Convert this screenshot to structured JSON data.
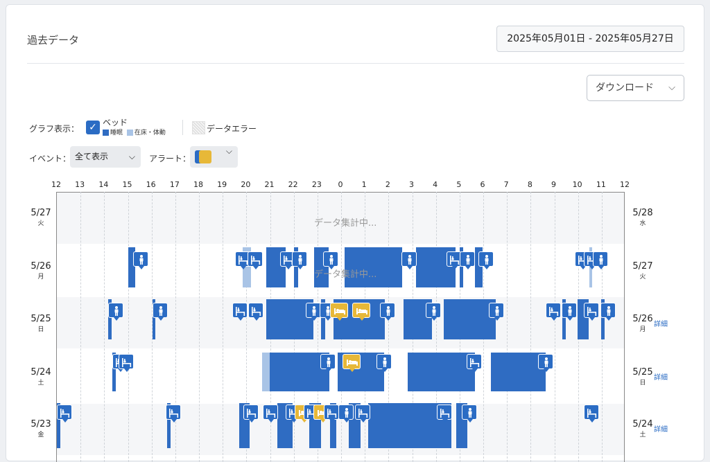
{
  "header": {
    "title": "過去データ",
    "date_range": "2025年05月01日 - 2025年05月27日",
    "download_label": "ダウンロード"
  },
  "legend": {
    "graph_label": "グラフ表示：",
    "bed_label": "ベッド",
    "sleep_label": "睡眠",
    "inbed_label": "在床・体動",
    "error_label": "データエラー"
  },
  "filters": {
    "event_label": "イベント：",
    "event_value": "全て表示",
    "alert_label": "アラート："
  },
  "colors": {
    "sleep": "#2f6cc2",
    "inbed": "#a9c4e6",
    "alert": "#e7b838",
    "icon": "#2b6cc4"
  },
  "axis_ticks": [
    "12",
    "13",
    "14",
    "15",
    "16",
    "17",
    "18",
    "19",
    "20",
    "21",
    "22",
    "23",
    "0",
    "1",
    "2",
    "3",
    "4",
    "5",
    "6",
    "7",
    "8",
    "9",
    "10",
    "11",
    "12"
  ],
  "aggregating_text": "データ集計中...",
  "detail_label": "詳細",
  "rows": [
    {
      "left_date": "5/27",
      "left_day": "火",
      "right_date": "5/28",
      "right_day": "水",
      "detail": false
    },
    {
      "left_date": "5/26",
      "left_day": "月",
      "right_date": "5/27",
      "right_day": "火",
      "detail": false
    },
    {
      "left_date": "5/25",
      "left_day": "日",
      "right_date": "5/26",
      "right_day": "月",
      "detail": true
    },
    {
      "left_date": "5/24",
      "left_day": "土",
      "right_date": "5/25",
      "right_day": "日",
      "detail": true
    },
    {
      "left_date": "5/23",
      "left_day": "金",
      "right_date": "5/24",
      "right_day": "土",
      "detail": true
    }
  ]
}
